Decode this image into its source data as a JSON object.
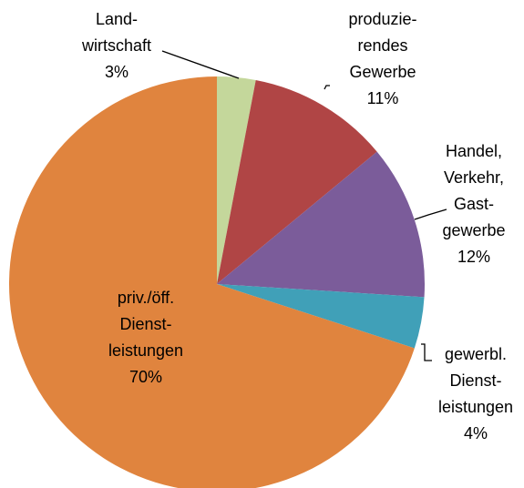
{
  "chart_data": {
    "type": "pie",
    "categories": [
      "Land-\nwirtschaft",
      "produzie-\nrendes\nGewerbe",
      "Handel,\nVerkehr,\nGast-\ngewerbe",
      "gewerbl.\nDienst-\nleistungen",
      "priv./öff.\nDienst-\nleistungen"
    ],
    "values": [
      3,
      11,
      12,
      4,
      70
    ],
    "value_labels": [
      "3%",
      "11%",
      "12%",
      "4%",
      "70%"
    ],
    "colors": [
      "#c4d79b",
      "#b04545",
      "#7b5c9a",
      "#40a0b8",
      "#e0843e"
    ]
  }
}
